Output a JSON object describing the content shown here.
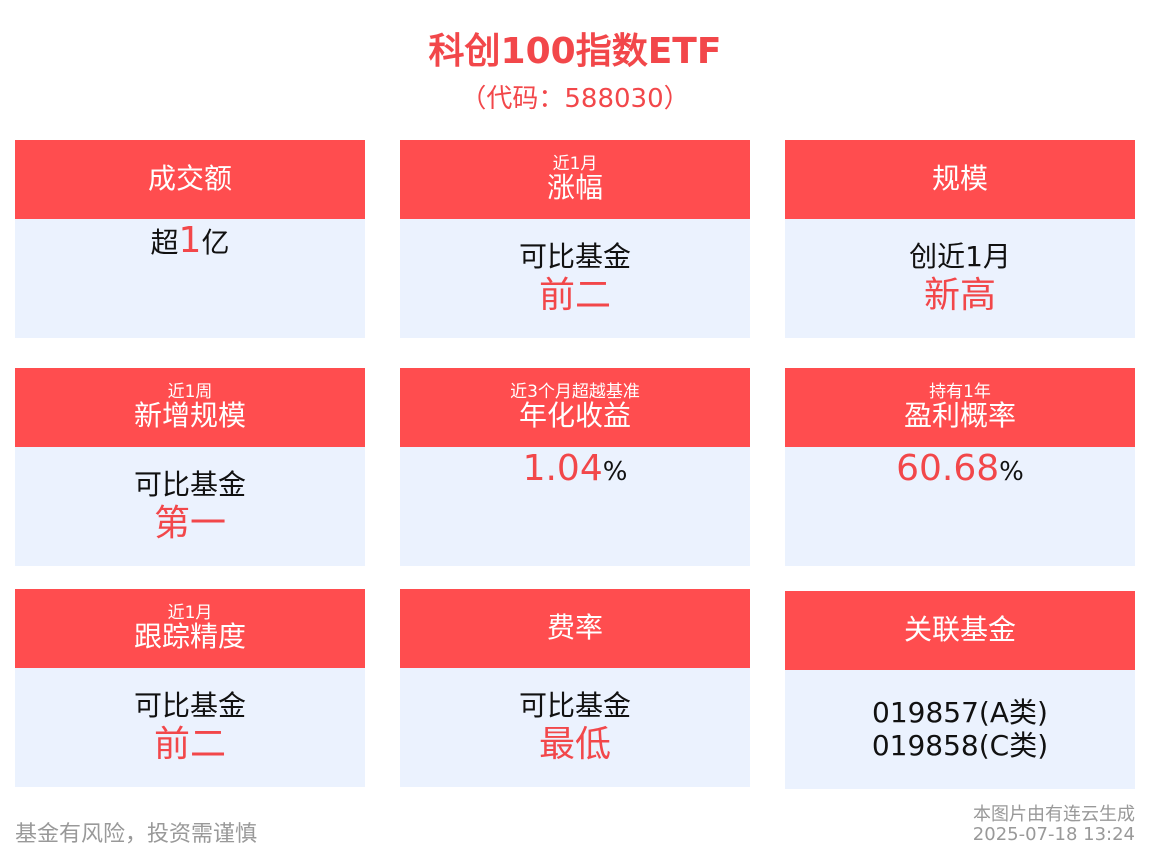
{
  "title": "科创100指数ETF",
  "code": "（代码：588030）",
  "colors": {
    "accent": "#ff4d4f",
    "card_bg": "#ebf2fe",
    "highlight": "#f2474a"
  },
  "cards": [
    {
      "sub": "",
      "main": "成交额",
      "pre": "超",
      "value": "1",
      "post": "亿"
    },
    {
      "sub": "近1月",
      "main": "涨幅",
      "line1": "可比基金",
      "line2": "前二"
    },
    {
      "sub": "",
      "main": "规模",
      "line1": "创近1月",
      "line2": "新高"
    },
    {
      "sub": "近1周",
      "main": "新增规模",
      "line1": "可比基金",
      "line2": "第一"
    },
    {
      "sub": "近3个月超越基准",
      "main": "年化收益",
      "value": "1.04",
      "unit": "%"
    },
    {
      "sub": "持有1年",
      "main": "盈利概率",
      "value": "60.68",
      "unit": "%"
    },
    {
      "sub": "近1月",
      "main": "跟踪精度",
      "line1": "可比基金",
      "line2": "前二"
    },
    {
      "sub": "",
      "main": "费率",
      "line1": "可比基金",
      "line2": "最低"
    },
    {
      "sub": "",
      "main": "关联基金",
      "line1": "019857(A类)",
      "line2": "019858(C类)"
    }
  ],
  "footer": {
    "risk": "基金有风险，投资需谨慎",
    "source": "本图片由有连云生成",
    "timestamp": "2025-07-18 13:24"
  }
}
